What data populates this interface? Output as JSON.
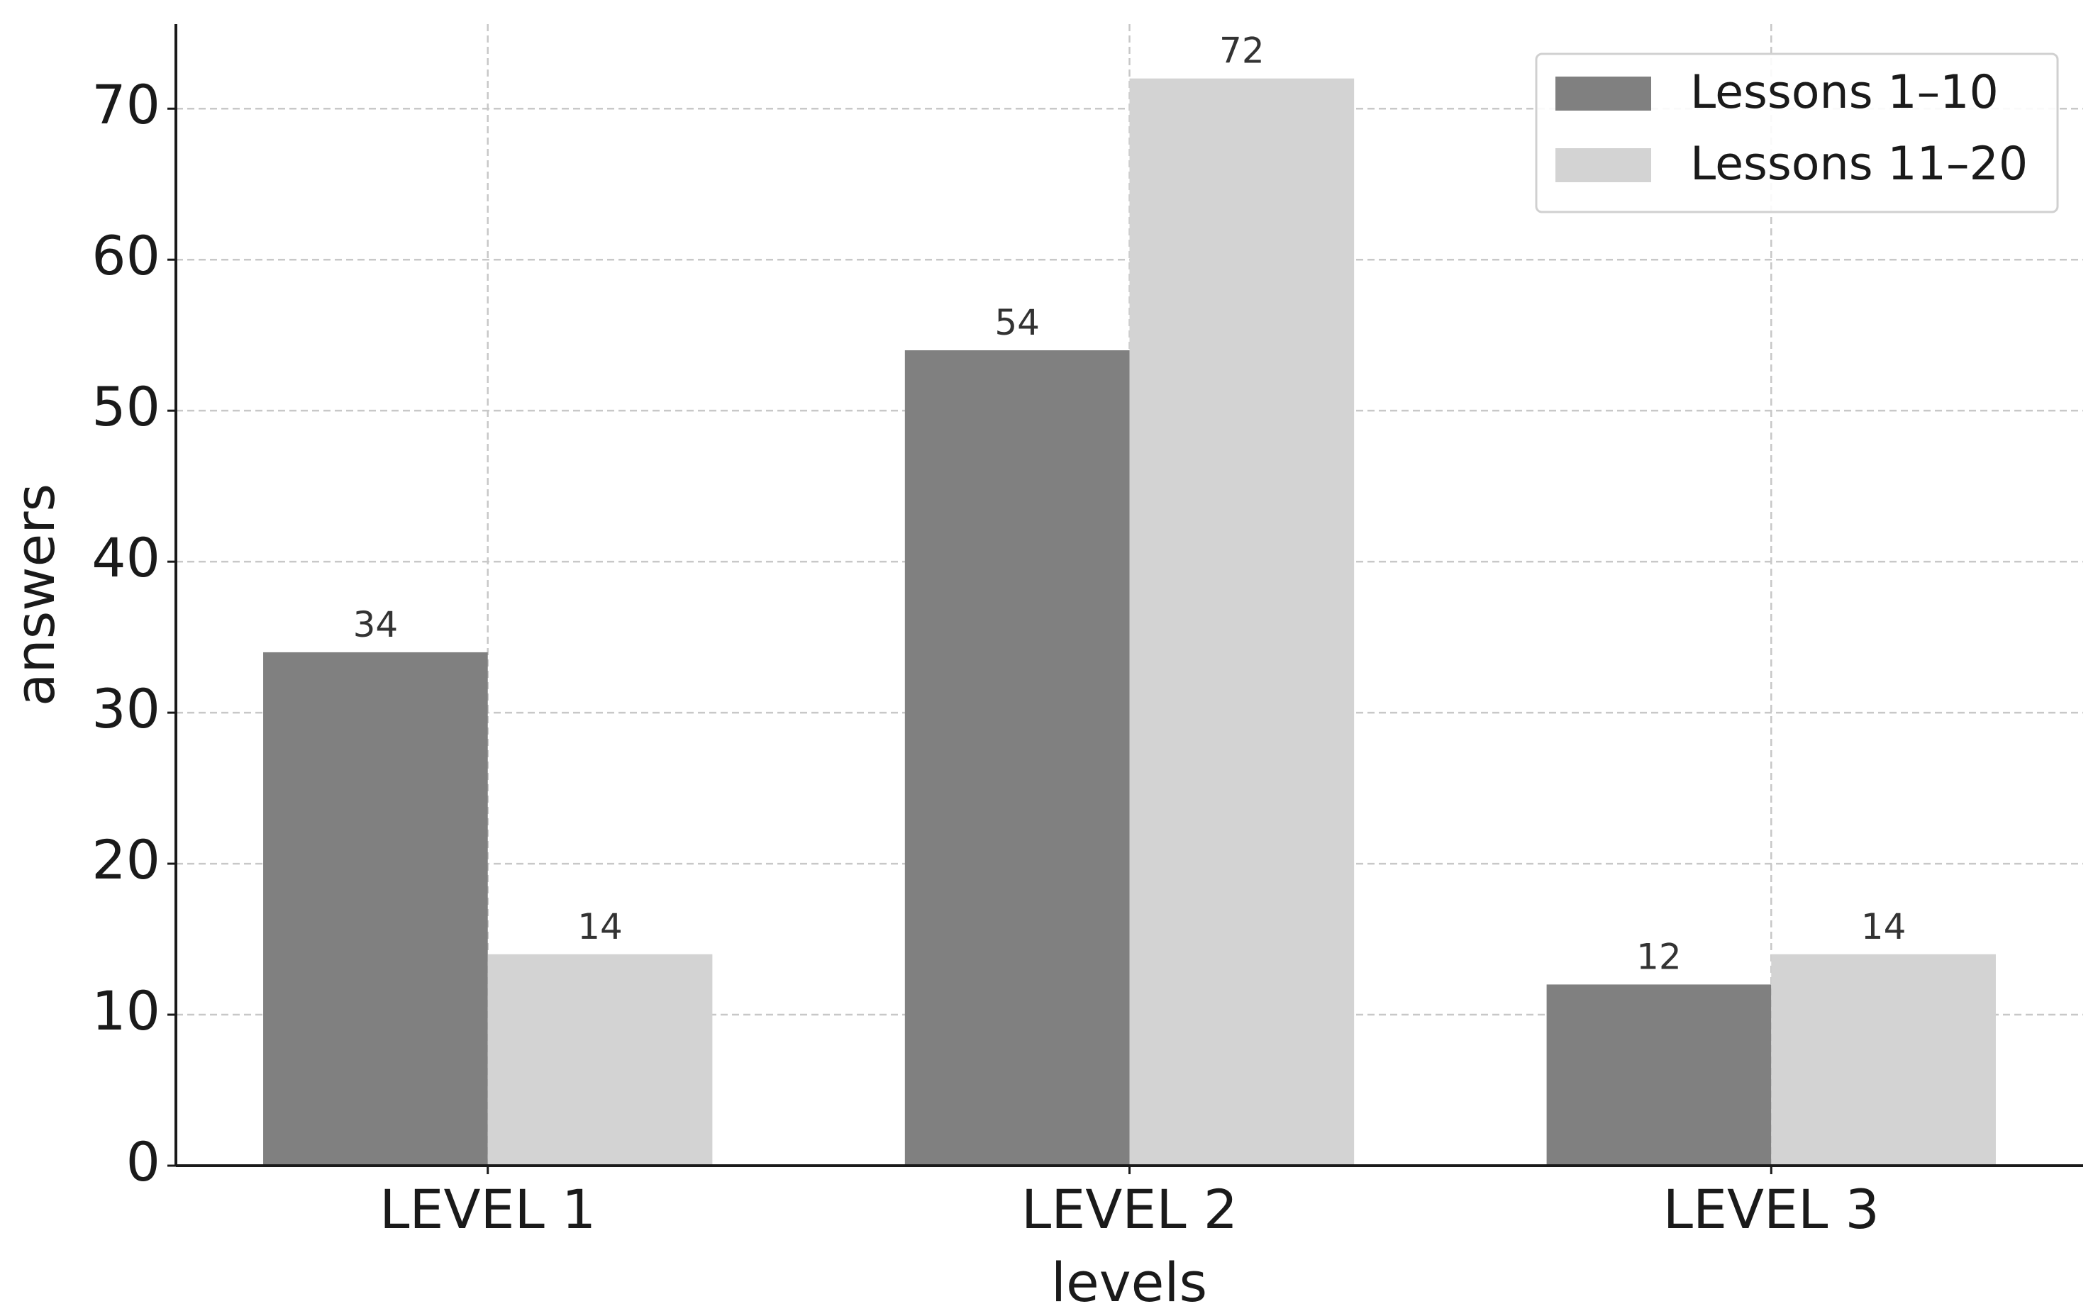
{
  "chart_data": {
    "type": "bar",
    "x_label": "levels",
    "y_label": "answers",
    "categories": [
      "LEVEL 1",
      "LEVEL 2",
      "LEVEL 3"
    ],
    "series": [
      {
        "name": "Lessons 1–10",
        "color": "#808080",
        "values": [
          34,
          54,
          12
        ]
      },
      {
        "name": "Lessons 11–20",
        "color": "#d3d3d3",
        "values": [
          14,
          72,
          14
        ]
      }
    ],
    "ylim": [
      0,
      75.6
    ],
    "yticks": [
      0,
      10,
      20,
      30,
      40,
      50,
      60,
      70
    ],
    "grid": true,
    "legend": "upper right"
  }
}
